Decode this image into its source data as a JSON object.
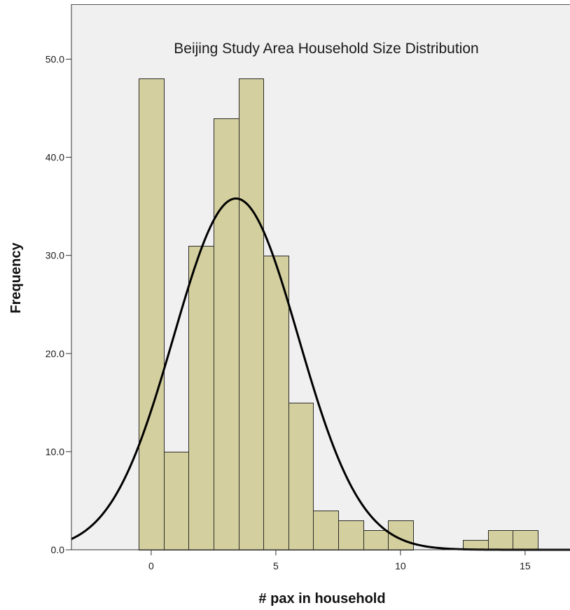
{
  "chart_data": {
    "type": "bar",
    "title": "Beijing Study Area Household Size Distribution",
    "xlabel": "# pax in household",
    "ylabel": "Frequency",
    "xlim": [
      -3.2,
      16.8
    ],
    "ylim": [
      0,
      55.6
    ],
    "x_ticks": [
      0,
      5,
      10,
      15
    ],
    "x_tick_labels": [
      "0",
      "5",
      "10",
      "15"
    ],
    "y_ticks": [
      0,
      10,
      20,
      30,
      40,
      50
    ],
    "y_tick_labels": [
      "0.0",
      "10.0",
      "20.0",
      "30.0",
      "40.0",
      "50.0"
    ],
    "bin_width": 1,
    "categories": [
      0,
      1,
      2,
      3,
      4,
      5,
      6,
      7,
      8,
      9,
      10,
      11,
      12,
      13,
      14,
      15
    ],
    "values": [
      48,
      10,
      31,
      44,
      48,
      30,
      15,
      4,
      3,
      2,
      3,
      0,
      0,
      1,
      2,
      2
    ],
    "normal_curve": {
      "mean": 3.4,
      "std_dev": 2.5,
      "peak": 35.8
    },
    "grid": false,
    "legend": "none",
    "colors": {
      "bar_fill": "#d4cf9e",
      "bar_stroke": "#2b2b2b",
      "plot_background": "#f0f0f0",
      "curve": "#000000"
    }
  }
}
